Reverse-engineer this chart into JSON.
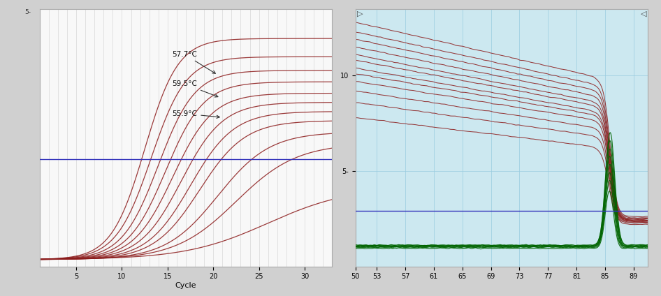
{
  "left_plot": {
    "bg_color": "#f8f8f8",
    "grid_color": "#d8d8d8",
    "xlim": [
      1,
      33
    ],
    "ylim_bottom": -0.15,
    "ylim_top": 5.5,
    "xticks": [
      5,
      10,
      15,
      20,
      25,
      30
    ],
    "xlabel": "Cycle",
    "threshold_y": 2.2,
    "threshold_color": "#3333bb",
    "curve_color": "#8b1a1a",
    "ytick_label": "5-"
  },
  "right_plot": {
    "bg_color": "#cce8f0",
    "grid_color": "#99cce0",
    "xlim": [
      50,
      91
    ],
    "ylim_bottom": 0.0,
    "ylim_top": 13.5,
    "xticks": [
      50.0,
      53.0,
      57.0,
      61.0,
      65.0,
      69.0,
      73.0,
      77.0,
      81.0,
      85.0,
      89.0
    ],
    "yticks": [
      5,
      10
    ],
    "ytick_labels": [
      "5-",
      "10"
    ],
    "threshold_y": 2.9,
    "threshold_color": "#3333bb",
    "red_curve_color": "#8b1a1a",
    "green_curve_color": "#006400",
    "melt_peak": 85.7
  }
}
